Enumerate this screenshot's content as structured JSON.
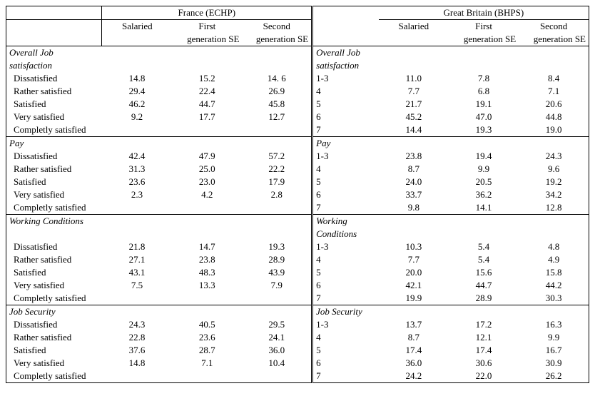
{
  "type": "table",
  "colors": {
    "border": "#000000",
    "background": "#ffffff",
    "text": "#000000"
  },
  "typography": {
    "font_family": "Times New Roman",
    "font_size_pt": 10
  },
  "headers": {
    "france_title": "France (ECHP)",
    "gb_title": "Great Britain (BHPS)",
    "salaried": "Salaried",
    "first_se_1": "First",
    "first_se_2": "generation SE",
    "second_se_1": "Second",
    "second_se_2": "generation SE"
  },
  "gb_scale": [
    "1-3",
    "4",
    "5",
    "6",
    "7"
  ],
  "fr_levels": [
    "Dissatisfied",
    "Rather satisfied",
    "Satisfied",
    "Very satisfied",
    "Completly satisfied"
  ],
  "sections": [
    {
      "fr_title_lines": [
        "Overall Job",
        "satisfaction"
      ],
      "gb_title_lines": [
        "Overall Job",
        "satisfaction"
      ],
      "fr": [
        [
          "14.8",
          "15.2",
          "14. 6"
        ],
        [
          "29.4",
          "22.4",
          "26.9"
        ],
        [
          "46.2",
          "44.7",
          "45.8"
        ],
        [
          "9.2",
          "17.7",
          "12.7"
        ],
        [
          "",
          "",
          ""
        ]
      ],
      "gb": [
        [
          "11.0",
          "7.8",
          "8.4"
        ],
        [
          "7.7",
          "6.8",
          "7.1"
        ],
        [
          "21.7",
          "19.1",
          "20.6"
        ],
        [
          "45.2",
          "47.0",
          "44.8"
        ],
        [
          "14.4",
          "19.3",
          "19.0"
        ]
      ]
    },
    {
      "fr_title_lines": [
        "Pay"
      ],
      "gb_title_lines": [
        "Pay"
      ],
      "fr": [
        [
          "42.4",
          "47.9",
          "57.2"
        ],
        [
          "31.3",
          "25.0",
          "22.2"
        ],
        [
          "23.6",
          "23.0",
          "17.9"
        ],
        [
          "2.3",
          "4.2",
          "2.8"
        ],
        [
          "",
          "",
          ""
        ]
      ],
      "gb": [
        [
          "23.8",
          "19.4",
          "24.3"
        ],
        [
          "8.7",
          "9.9",
          "9.6"
        ],
        [
          "24.0",
          "20.5",
          "19.2"
        ],
        [
          "33.7",
          "36.2",
          "34.2"
        ],
        [
          "9.8",
          "14.1",
          "12.8"
        ]
      ]
    },
    {
      "fr_title_lines": [
        "Working Conditions"
      ],
      "gb_title_lines": [
        "Working",
        "Conditions"
      ],
      "fr": [
        [
          "21.8",
          "14.7",
          "19.3"
        ],
        [
          "27.1",
          "23.8",
          "28.9"
        ],
        [
          "43.1",
          "48.3",
          "43.9"
        ],
        [
          "7.5",
          "13.3",
          "7.9"
        ],
        [
          "",
          "",
          ""
        ]
      ],
      "gb": [
        [
          "10.3",
          "5.4",
          "4.8"
        ],
        [
          "7.7",
          "5.4",
          "4.9"
        ],
        [
          "20.0",
          "15.6",
          "15.8"
        ],
        [
          "42.1",
          "44.7",
          "44.2"
        ],
        [
          "19.9",
          "28.9",
          "30.3"
        ]
      ]
    },
    {
      "fr_title_lines": [
        "Job Security"
      ],
      "gb_title_lines": [
        "Job Security"
      ],
      "fr": [
        [
          "24.3",
          "40.5",
          "29.5"
        ],
        [
          "22.8",
          "23.6",
          "24.1"
        ],
        [
          "37.6",
          "28.7",
          "36.0"
        ],
        [
          "14.8",
          "7.1",
          "10.4"
        ],
        [
          "",
          "",
          ""
        ]
      ],
      "gb": [
        [
          "13.7",
          "17.2",
          "16.3"
        ],
        [
          "8.7",
          "12.1",
          "9.9"
        ],
        [
          "17.4",
          "17.4",
          "16.7"
        ],
        [
          "36.0",
          "30.6",
          "30.9"
        ],
        [
          "24.2",
          "22.0",
          "26.2"
        ]
      ]
    }
  ]
}
